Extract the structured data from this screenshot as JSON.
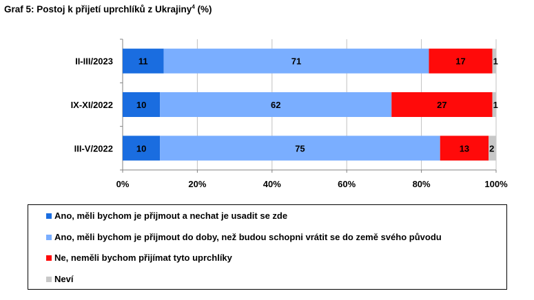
{
  "title": {
    "main": "Graf 5: Postoj k přijetí uprchlíků z Ukrajiny",
    "sup": "4",
    "suffix": " (%)"
  },
  "chart_data": {
    "type": "bar",
    "orientation": "horizontal",
    "stacked": "percent",
    "categories": [
      "II-III/2023",
      "IX-XI/2022",
      "III-V/2022"
    ],
    "series": [
      {
        "name": "Ano, měli bychom je přijmout a nechat je usadit se zde",
        "color": "#1a6de0",
        "values": [
          11,
          10,
          10
        ]
      },
      {
        "name": "Ano, měli bychom je přijmout do doby, než budou schopni vrátit se do země svého původu",
        "color": "#7aaeff",
        "values": [
          71,
          62,
          75
        ]
      },
      {
        "name": "Ne, neměli bychom přijímat tyto uprchlíky",
        "color": "#ff0a0a",
        "values": [
          17,
          27,
          13
        ]
      },
      {
        "name": "Neví",
        "color": "#c8c8c8",
        "values": [
          1,
          1,
          2
        ]
      }
    ],
    "xticks": [
      "0%",
      "20%",
      "40%",
      "60%",
      "80%",
      "100%"
    ],
    "xlim": [
      0,
      100
    ],
    "grid": true,
    "legend_position": "bottom"
  }
}
